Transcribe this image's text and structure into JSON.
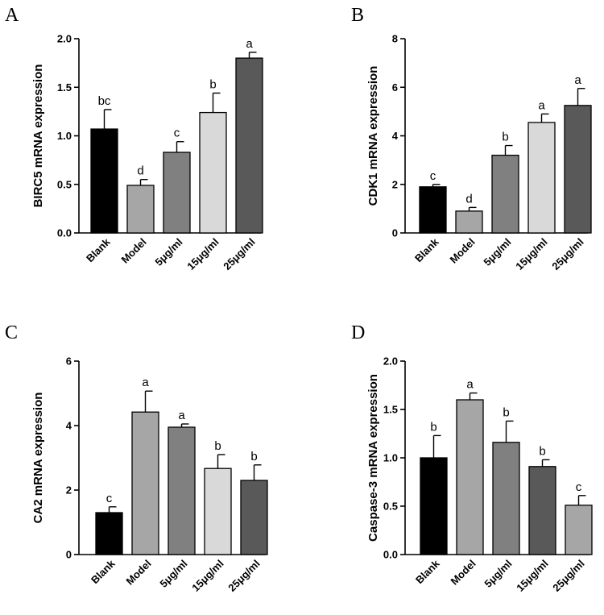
{
  "chart_data": [
    {
      "panel": "A",
      "type": "bar",
      "ylabel": "BIRC5 mRNA expression",
      "ylim": [
        0,
        2.0
      ],
      "yticks": [
        "0.0",
        "0.5",
        "1.0",
        "1.5",
        "2.0"
      ],
      "categories": [
        "Blank",
        "Model",
        "5μg/ml",
        "15μg/ml",
        "25μg/ml"
      ],
      "values": [
        1.07,
        0.49,
        0.83,
        1.24,
        1.8
      ],
      "errors": [
        0.2,
        0.06,
        0.11,
        0.2,
        0.06
      ],
      "significance": [
        "bc",
        "d",
        "c",
        "b",
        "a"
      ],
      "colors": [
        "#000000",
        "#a6a6a6",
        "#808080",
        "#d9d9d9",
        "#595959"
      ]
    },
    {
      "panel": "B",
      "type": "bar",
      "ylabel": "CDK1 mRNA expression",
      "ylim": [
        0,
        8
      ],
      "yticks": [
        "0",
        "2",
        "4",
        "6",
        "8"
      ],
      "categories": [
        "Blank",
        "Model",
        "5μg/ml",
        "15μg/ml",
        "25μg/ml"
      ],
      "values": [
        1.9,
        0.9,
        3.2,
        4.55,
        5.25
      ],
      "errors": [
        0.1,
        0.15,
        0.4,
        0.35,
        0.7
      ],
      "significance": [
        "c",
        "d",
        "b",
        "a",
        "a"
      ],
      "colors": [
        "#000000",
        "#a6a6a6",
        "#808080",
        "#d9d9d9",
        "#595959"
      ]
    },
    {
      "panel": "C",
      "type": "bar",
      "ylabel": "CA2 mRNA expression",
      "ylim": [
        0,
        6
      ],
      "yticks": [
        "0",
        "2",
        "4",
        "6"
      ],
      "categories": [
        "Blank",
        "Model",
        "5μg/ml",
        "15μg/ml",
        "25μg/ml"
      ],
      "values": [
        1.3,
        4.42,
        3.95,
        2.67,
        2.3
      ],
      "errors": [
        0.18,
        0.65,
        0.1,
        0.43,
        0.48
      ],
      "significance": [
        "c",
        "a",
        "a",
        "b",
        "b"
      ],
      "colors": [
        "#000000",
        "#a6a6a6",
        "#808080",
        "#d9d9d9",
        "#595959"
      ]
    },
    {
      "panel": "D",
      "type": "bar",
      "ylabel": "Caspase-3 mRNA expression",
      "ylim": [
        0,
        2.0
      ],
      "yticks": [
        "0.0",
        "0.5",
        "1.0",
        "1.5",
        "2.0"
      ],
      "categories": [
        "Blank",
        "Model",
        "5μg/ml",
        "15μg/ml",
        "25μg/ml"
      ],
      "values": [
        1.0,
        1.6,
        1.16,
        0.91,
        0.51
      ],
      "errors": [
        0.23,
        0.07,
        0.22,
        0.07,
        0.1
      ],
      "significance": [
        "b",
        "a",
        "b",
        "b",
        "c"
      ],
      "colors": [
        "#000000",
        "#a6a6a6",
        "#808080",
        "#595959",
        "#a6a6a6"
      ]
    }
  ]
}
